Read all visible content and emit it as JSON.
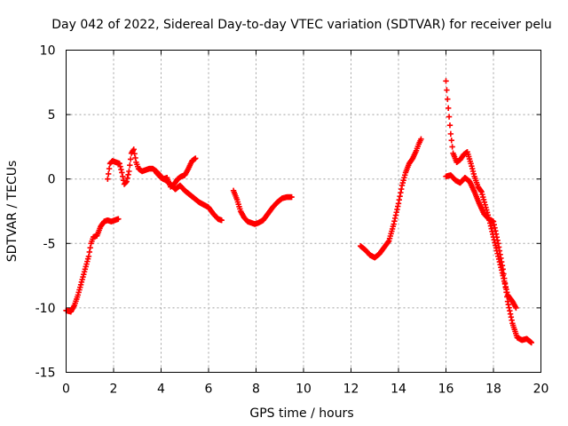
{
  "chart_data": {
    "type": "scatter",
    "title": "Day 042 of 2022, Sidereal Day-to-day VTEC variation (SDTVAR) for receiver pelu",
    "xlabel": "GPS time / hours",
    "ylabel": "SDTVAR / TECUs",
    "xlim": [
      0,
      20
    ],
    "ylim": [
      -15,
      10
    ],
    "x_ticks": [
      0,
      2,
      4,
      6,
      8,
      10,
      12,
      14,
      16,
      18,
      20
    ],
    "x_tick_labels": [
      "0",
      "2",
      "4",
      "6",
      "8",
      "10",
      "12",
      "14",
      "16",
      "18",
      "20"
    ],
    "y_ticks": [
      -15,
      -10,
      -5,
      0,
      5,
      10
    ],
    "y_tick_labels": [
      "-15",
      "-10",
      "-5",
      "0",
      "5",
      "10"
    ],
    "grid": true,
    "marker": "+",
    "color": "#ff0000",
    "series": [
      {
        "name": "seg1",
        "x": [
          0.0,
          0.2,
          0.35,
          0.5,
          0.65,
          0.8,
          0.95,
          1.05,
          1.15,
          1.3,
          1.45,
          1.6,
          1.75,
          1.9,
          2.05,
          2.2
        ],
        "y": [
          -10.2,
          -10.3,
          -9.8,
          -9.0,
          -8.0,
          -7.0,
          -6.0,
          -5.0,
          -4.5,
          -4.4,
          -3.7,
          -3.3,
          -3.2,
          -3.3,
          -3.2,
          -3.1
        ]
      },
      {
        "name": "seg2",
        "x": [
          1.75,
          1.85,
          1.95,
          2.1,
          2.25,
          2.35,
          2.45,
          2.55,
          2.65,
          2.75,
          2.85,
          2.95,
          3.05,
          3.2,
          3.35,
          3.5,
          3.65,
          3.8,
          3.95,
          4.1,
          4.25,
          4.4,
          4.55,
          4.7,
          4.85,
          5.0,
          5.15,
          5.3,
          5.45
        ],
        "y": [
          0.0,
          1.2,
          1.4,
          1.3,
          1.2,
          0.5,
          -0.4,
          -0.2,
          0.6,
          2.0,
          2.3,
          1.3,
          0.8,
          0.6,
          0.7,
          0.8,
          0.8,
          0.6,
          0.3,
          0.0,
          0.1,
          -0.6,
          -0.4,
          0.0,
          0.2,
          0.3,
          0.8,
          1.4,
          1.6
        ]
      },
      {
        "name": "seg3",
        "x": [
          3.8,
          4.0,
          4.2,
          4.4,
          4.6,
          4.8,
          5.0,
          5.2,
          5.4,
          5.6,
          5.8,
          6.0,
          6.2,
          6.4,
          6.55
        ],
        "y": [
          0.5,
          0.1,
          -0.1,
          -0.4,
          -0.8,
          -0.5,
          -0.9,
          -1.2,
          -1.5,
          -1.8,
          -2.0,
          -2.2,
          -2.7,
          -3.1,
          -3.2
        ]
      },
      {
        "name": "seg4",
        "x": [
          7.05,
          7.2,
          7.35,
          7.5,
          7.65,
          7.8,
          7.95,
          8.1,
          8.3,
          8.5,
          8.7,
          8.9,
          9.1,
          9.3,
          9.5
        ],
        "y": [
          -0.9,
          -1.6,
          -2.5,
          -3.0,
          -3.3,
          -3.4,
          -3.5,
          -3.4,
          -3.2,
          -2.7,
          -2.2,
          -1.8,
          -1.5,
          -1.4,
          -1.4
        ]
      },
      {
        "name": "seg5",
        "x": [
          12.4,
          12.6,
          12.8,
          13.0,
          13.2,
          13.4,
          13.6,
          13.8,
          14.0,
          14.15,
          14.3,
          14.45,
          14.6,
          14.75,
          14.85,
          14.95
        ],
        "y": [
          -5.2,
          -5.5,
          -5.9,
          -6.1,
          -5.8,
          -5.3,
          -4.8,
          -3.5,
          -1.9,
          -0.5,
          0.5,
          1.2,
          1.6,
          2.2,
          2.7,
          3.1
        ]
      },
      {
        "name": "seg6",
        "x": [
          16.0,
          16.1,
          16.2,
          16.3,
          16.45,
          16.6,
          16.75,
          16.9,
          17.05,
          17.2,
          17.35,
          17.5,
          17.65,
          17.8,
          18.0,
          18.2,
          18.4,
          18.6,
          18.8,
          18.95
        ],
        "y": [
          7.6,
          5.5,
          3.5,
          2.0,
          1.3,
          1.5,
          1.9,
          2.1,
          1.2,
          0.2,
          -0.6,
          -1.0,
          -2.0,
          -3.0,
          -4.5,
          -6.0,
          -7.5,
          -9.0,
          -9.5,
          -10.0
        ]
      },
      {
        "name": "seg7",
        "x": [
          16.0,
          16.2,
          16.4,
          16.6,
          16.8,
          17.0,
          17.2,
          17.4,
          17.6,
          17.8,
          18.0,
          18.2,
          18.4,
          18.6,
          18.8,
          19.0,
          19.2,
          19.4,
          19.6
        ],
        "y": [
          0.2,
          0.3,
          -0.1,
          -0.3,
          0.1,
          -0.2,
          -1.0,
          -1.9,
          -2.7,
          -3.1,
          -3.3,
          -5.0,
          -7.0,
          -9.5,
          -11.2,
          -12.3,
          -12.5,
          -12.4,
          -12.7
        ]
      }
    ]
  }
}
